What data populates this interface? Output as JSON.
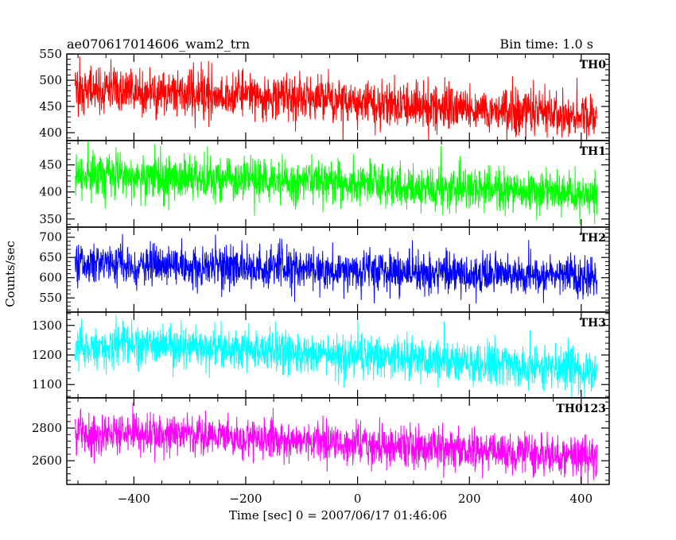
{
  "header": {
    "title": "ae070617014606_wam2_trn",
    "bin_time": "Bin time: 1.0 s"
  },
  "chart_data": {
    "type": "line",
    "xlabel": "Time [sec] 0 = 2007/06/17 01:46:06",
    "ylabel": "Counts/sec",
    "xlim": [
      -520,
      450
    ],
    "x_ticks": [
      -400,
      -200,
      0,
      200,
      400
    ],
    "x_tick_labels": [
      "−400",
      "−200",
      "0",
      "200",
      "400"
    ],
    "x_data_range": [
      -505,
      428
    ],
    "bin_time_s": 1.0,
    "panels": [
      {
        "name": "TH0",
        "color": "#ff0000",
        "ylim": [
          385,
          550
        ],
        "yticks": [
          400,
          450,
          500,
          550
        ],
        "trend": {
          "x": [
            -505,
            -400,
            -200,
            0,
            200,
            428
          ],
          "y": [
            482,
            478,
            470,
            458,
            445,
            432
          ]
        },
        "noise_sd": 22
      },
      {
        "name": "TH1",
        "color": "#00ff00",
        "ylim": [
          335,
          495
        ],
        "yticks": [
          350,
          400,
          450
        ],
        "trend": {
          "x": [
            -505,
            -400,
            -200,
            0,
            200,
            428
          ],
          "y": [
            430,
            428,
            422,
            415,
            405,
            398
          ]
        },
        "noise_sd": 20
      },
      {
        "name": "TH2",
        "color": "#0000ff",
        "ylim": [
          515,
          725
        ],
        "yticks": [
          550,
          600,
          650,
          700
        ],
        "trend": {
          "x": [
            -505,
            -400,
            -200,
            0,
            200,
            428
          ],
          "y": [
            635,
            632,
            625,
            618,
            610,
            602
          ]
        },
        "noise_sd": 25
      },
      {
        "name": "TH3",
        "color": "#00ffff",
        "ylim": [
          1055,
          1345
        ],
        "yticks": [
          1100,
          1200,
          1300
        ],
        "trend": {
          "x": [
            -505,
            -400,
            -200,
            0,
            200,
            428
          ],
          "y": [
            1225,
            1235,
            1220,
            1195,
            1170,
            1150
          ]
        },
        "noise_sd": 35
      },
      {
        "name": "TH0123",
        "color": "#ff00ff",
        "ylim": [
          2455,
          2985
        ],
        "yticks": [
          2600,
          2800
        ],
        "trend": {
          "x": [
            -505,
            -400,
            -200,
            0,
            200,
            428
          ],
          "y": [
            2760,
            2770,
            2740,
            2700,
            2660,
            2620
          ]
        },
        "noise_sd": 60
      }
    ]
  }
}
